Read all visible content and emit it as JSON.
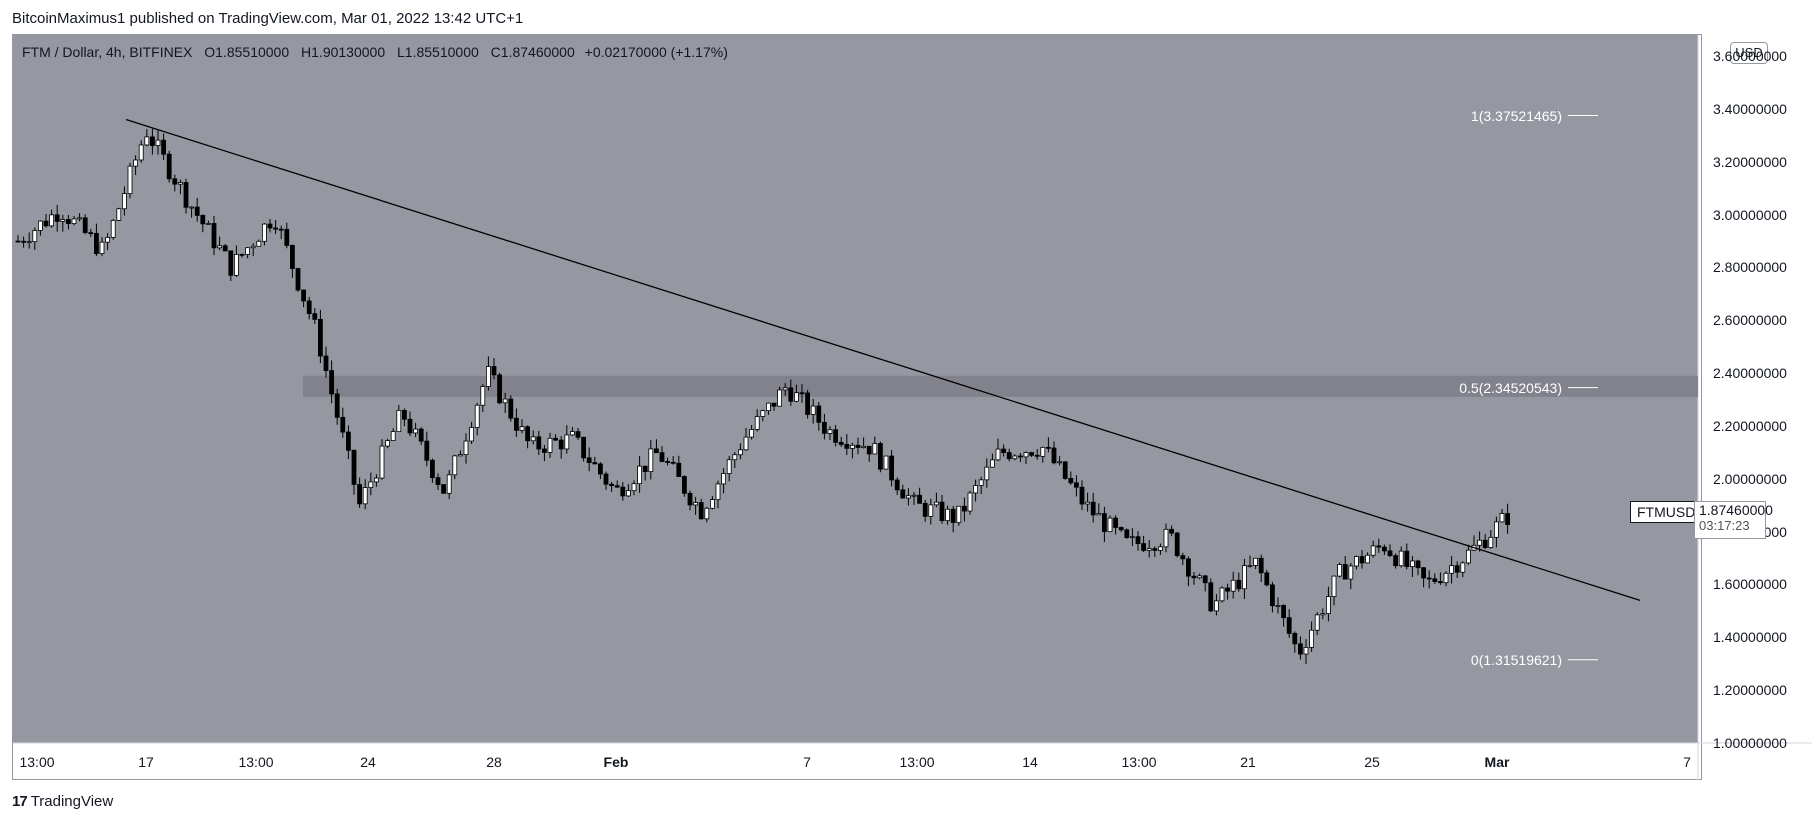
{
  "header": {
    "publisher": "BitcoinMaximus1 published on TradingView.com, Mar 01, 2022 13:42 UTC+1"
  },
  "legend": {
    "symbol": "FTM / Dollar, 4h, BITFINEX",
    "o_label": "O",
    "o_value": "1.85510000",
    "h_label": "H",
    "h_value": "1.90130000",
    "l_label": "L",
    "l_value": "1.85510000",
    "c_label": "C",
    "c_value": "1.87460000",
    "change": "+0.02170000 (+1.17%)"
  },
  "currency_button": "USD",
  "price_scale": {
    "ticks": [
      "3.60000000",
      "3.40000000",
      "3.20000000",
      "3.00000000",
      "2.80000000",
      "2.60000000",
      "2.40000000",
      "2.20000000",
      "2.00000000",
      "1.80000000",
      "1.60000000",
      "1.40000000",
      "1.20000000",
      "1.00000000"
    ]
  },
  "time_scale": {
    "ticks": [
      "13:00",
      "17",
      "13:00",
      "24",
      "28",
      "Feb",
      "7",
      "13:00",
      "14",
      "13:00",
      "21",
      "25",
      "Mar",
      "7"
    ]
  },
  "current_price": {
    "symbol_tag": "FTMUSD",
    "value": "1.87460000",
    "countdown": "03:17:23"
  },
  "fib_levels": [
    {
      "label": "1(3.37521465)",
      "value": 3.37521465
    },
    {
      "label": "0.5(2.34520543)",
      "value": 2.34520543
    },
    {
      "label": "0(1.31519621)",
      "value": 1.31519621
    }
  ],
  "footer": {
    "brand": "TradingView",
    "logo_mark": "17"
  },
  "colors": {
    "plot_background": "#9598a1",
    "zone": "#7e8089",
    "candle_up": "#ffffff",
    "candle_down": "#000000",
    "trendline": "#000000"
  },
  "chart_data": {
    "type": "candlestick",
    "title": "FTM / Dollar, 4h, BITFINEX",
    "ylim": [
      1.0,
      3.68
    ],
    "x_ticks": [
      "13:00",
      "17",
      "13:00",
      "24",
      "28",
      "Feb",
      "7",
      "13:00",
      "14",
      "13:00",
      "21",
      "25",
      "Mar",
      "7"
    ],
    "resistance_zone": [
      2.31,
      2.39
    ],
    "descending_trendline": {
      "start_price": 3.36,
      "end_price": 1.54
    },
    "fib_retracement": [
      {
        "ratio": 1,
        "price": 3.37521465
      },
      {
        "ratio": 0.5,
        "price": 2.34520543
      },
      {
        "ratio": 0,
        "price": 1.31519621
      }
    ],
    "path_keypoints": [
      {
        "date": "Jan 14",
        "price": 2.9
      },
      {
        "date": "Jan 15",
        "price": 3.02
      },
      {
        "date": "Jan 16",
        "price": 2.86
      },
      {
        "date": "Jan 17",
        "price": 3.32
      },
      {
        "date": "Jan 18",
        "price": 3.05
      },
      {
        "date": "Jan 19",
        "price": 2.8
      },
      {
        "date": "Jan 20",
        "price": 3.0
      },
      {
        "date": "Jan 21",
        "price": 2.55
      },
      {
        "date": "Jan 22",
        "price": 1.9
      },
      {
        "date": "Jan 23",
        "price": 2.25
      },
      {
        "date": "Jan 24",
        "price": 1.95
      },
      {
        "date": "Jan 26",
        "price": 2.4
      },
      {
        "date": "Jan 27",
        "price": 2.12
      },
      {
        "date": "Jan 30",
        "price": 2.15
      },
      {
        "date": "Feb 1",
        "price": 1.95
      },
      {
        "date": "Feb 2",
        "price": 2.1
      },
      {
        "date": "Feb 4",
        "price": 1.88
      },
      {
        "date": "Feb 6",
        "price": 2.15
      },
      {
        "date": "Feb 7",
        "price": 2.35
      },
      {
        "date": "Feb 9",
        "price": 2.18
      },
      {
        "date": "Feb 11",
        "price": 2.12
      },
      {
        "date": "Feb 12",
        "price": 1.9
      },
      {
        "date": "Feb 14",
        "price": 1.85
      },
      {
        "date": "Feb 16",
        "price": 2.1
      },
      {
        "date": "Feb 17",
        "price": 2.12
      },
      {
        "date": "Feb 18",
        "price": 1.9
      },
      {
        "date": "Feb 20",
        "price": 1.75
      },
      {
        "date": "Feb 21",
        "price": 1.78
      },
      {
        "date": "Feb 22",
        "price": 1.52
      },
      {
        "date": "Feb 23",
        "price": 1.68
      },
      {
        "date": "Feb 24",
        "price": 1.34
      },
      {
        "date": "Feb 25",
        "price": 1.65
      },
      {
        "date": "Feb 26",
        "price": 1.75
      },
      {
        "date": "Feb 27",
        "price": 1.6
      },
      {
        "date": "Feb 28",
        "price": 1.72
      },
      {
        "date": "Mar 1",
        "price": 1.8746
      }
    ]
  }
}
